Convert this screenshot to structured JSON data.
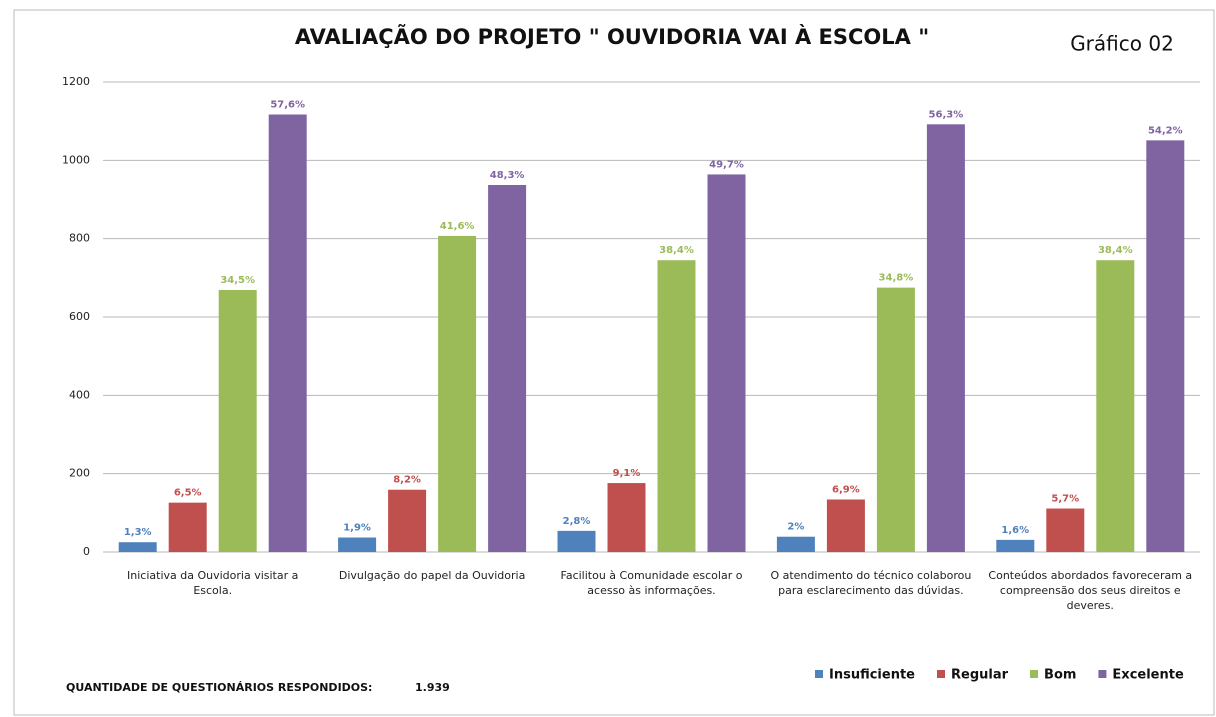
{
  "chart_data": {
    "type": "bar",
    "title": "AVALIAÇÃO DO PROJETO \" OUVIDORIA VAI À ESCOLA \"",
    "subtitle": "Gráfico 02",
    "categories": [
      "Iniciativa da Ouvidoria visitar a Escola.",
      "Divulgação do papel da Ouvidoria",
      "Facilitou à Comunidade escolar o acesso às informações.",
      "O atendimento do técnico colaborou para esclarecimento das dúvidas.",
      "Conteúdos abordados favoreceram a compreensão dos seus direitos e deveres."
    ],
    "series": [
      {
        "name": "Insuficiente",
        "color": "#4f81bd",
        "values": [
          25,
          37,
          54,
          39,
          31
        ],
        "percent_labels": [
          "1,3%",
          "1,9%",
          "2,8%",
          "2%",
          "1,6%"
        ]
      },
      {
        "name": "Regular",
        "color": "#c0504d",
        "values": [
          126,
          159,
          176,
          134,
          111
        ],
        "percent_labels": [
          "6,5%",
          "8,2%",
          "9,1%",
          "6,9%",
          "5,7%"
        ]
      },
      {
        "name": "Bom",
        "color": "#9bbb59",
        "values": [
          669,
          807,
          745,
          675,
          745
        ],
        "percent_labels": [
          "34,5%",
          "41,6%",
          "38,4%",
          "34,8%",
          "38,4%"
        ]
      },
      {
        "name": "Excelente",
        "color": "#8064a2",
        "values": [
          1117,
          937,
          964,
          1092,
          1051
        ],
        "percent_labels": [
          "57,6%",
          "48,3%",
          "49,7%",
          "56,3%",
          "54,2%"
        ]
      }
    ],
    "ylim": [
      0,
      1200
    ],
    "yticks": [
      0,
      200,
      400,
      600,
      800,
      1000,
      1200
    ],
    "grid": true,
    "legend": "bottom-right",
    "footer": {
      "label": "QUANTIDADE DE QUESTIONÁRIOS RESPONDIDOS:",
      "value": "1.939"
    }
  }
}
